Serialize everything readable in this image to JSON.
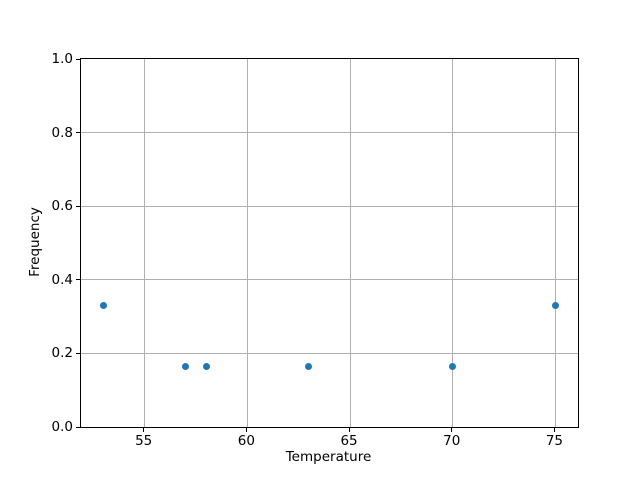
{
  "chart_data": {
    "type": "scatter",
    "title": "",
    "xlabel": "Temperature",
    "ylabel": "Frequency",
    "x": [
      53,
      57,
      58,
      63,
      70,
      75
    ],
    "y": [
      0.33,
      0.165,
      0.165,
      0.165,
      0.165,
      0.33
    ],
    "xlim": [
      51.9,
      76.1
    ],
    "ylim": [
      0.0,
      1.0
    ],
    "xticks": [
      55,
      60,
      65,
      70,
      75
    ],
    "yticks": [
      0.0,
      0.2,
      0.4,
      0.6,
      0.8,
      1.0
    ],
    "xtick_labels": [
      "55",
      "60",
      "65",
      "70",
      "75"
    ],
    "ytick_labels": [
      "0.0",
      "0.2",
      "0.4",
      "0.6",
      "0.8",
      "1.0"
    ],
    "grid": true,
    "legend": "none",
    "marker_color": "#1f77b4",
    "grid_color": "#b0b0b0",
    "spine_color": "#000000",
    "background_color": "#ffffff"
  }
}
